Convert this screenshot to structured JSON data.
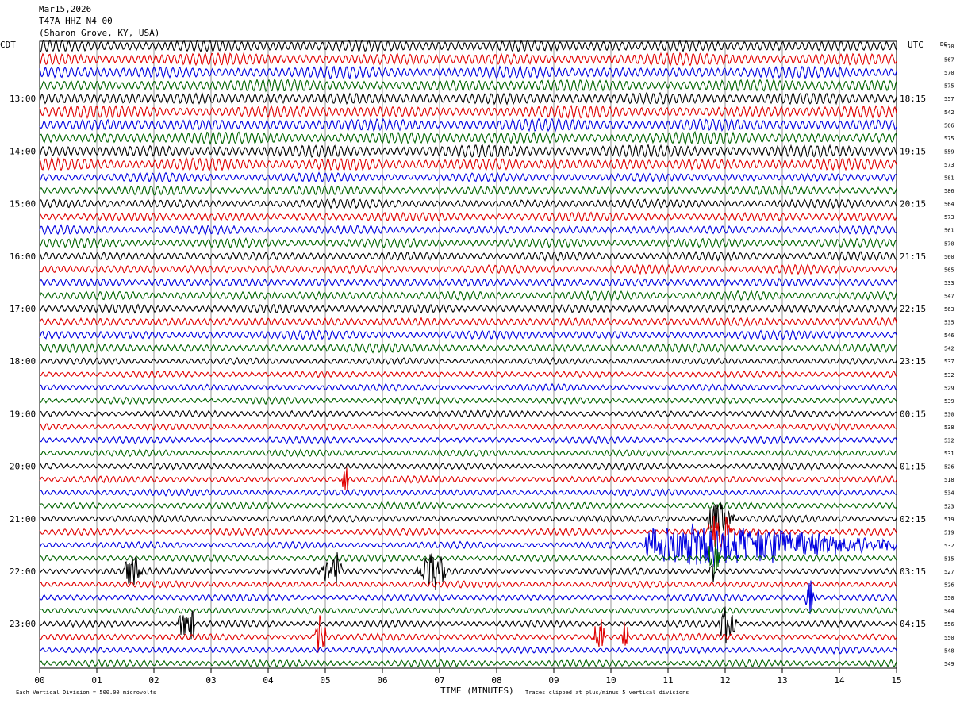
{
  "header": {
    "date": "Mar15,2026",
    "channel": "T47A HHZ N4 00",
    "location": "(Sharon Grove, KY, USA)"
  },
  "labels": {
    "left_tz": "CDT",
    "right_tz": "UTC",
    "dc_header": "DC",
    "xlabel": "TIME (MINUTES)",
    "scale_note": "Each Vertical Division =  500.00 microvolts",
    "clip_note": "Traces clipped at plus/minus 5 vertical divisions"
  },
  "chart_data": {
    "type": "line",
    "description": "helicorder: 48 traces, 15 minutes each, colors cycle black/red/blue/green",
    "x_ticks": [
      "00",
      "01",
      "02",
      "03",
      "04",
      "05",
      "06",
      "07",
      "08",
      "09",
      "10",
      "11",
      "12",
      "13",
      "14",
      "15"
    ],
    "xlim": [
      0,
      15
    ],
    "grid_vertical": true,
    "colors": [
      "#000000",
      "#e00000",
      "#0000e0",
      "#006400"
    ],
    "left_hour_labels": [
      "13:00",
      "14:00",
      "15:00",
      "16:00",
      "17:00",
      "18:00",
      "19:00",
      "20:00",
      "21:00",
      "22:00",
      "23:00"
    ],
    "right_hour_labels": [
      "18:15",
      "19:15",
      "20:15",
      "21:15",
      "22:15",
      "23:15",
      "00:15",
      "01:15",
      "02:15",
      "03:15",
      "04:15"
    ],
    "hour_label_first_row": 4,
    "dc_offsets": [
      570,
      567,
      570,
      575,
      557,
      542,
      566,
      575,
      559,
      573,
      581,
      586,
      564,
      573,
      561,
      570,
      560,
      565,
      533,
      547,
      563,
      535,
      546,
      542,
      537,
      532,
      529,
      539,
      530,
      538,
      532,
      531,
      526,
      518,
      534,
      523,
      519,
      519,
      532,
      515,
      527,
      526,
      550,
      544,
      556,
      550,
      548,
      549
    ],
    "trace_amplitude_class": [
      3,
      3,
      3,
      3,
      3,
      3,
      3,
      3,
      3,
      3,
      2,
      2,
      2,
      2,
      2,
      2,
      2,
      2,
      2,
      2,
      2,
      2,
      2,
      2,
      1,
      1,
      1,
      1,
      1,
      1,
      1,
      1,
      1,
      1,
      1,
      1,
      1,
      1,
      1,
      1,
      1,
      1,
      1,
      1,
      1,
      1,
      1,
      1
    ],
    "events": [
      {
        "row": 38,
        "minute_start": 10.6,
        "minute_end": 15.0,
        "peak_minute": 11.8
      },
      {
        "row": 36,
        "minute_start": 11.7,
        "minute_end": 12.2,
        "peak_minute": 11.8
      },
      {
        "row": 37,
        "minute_start": 11.7,
        "minute_end": 12.1,
        "peak_minute": 11.9
      },
      {
        "row": 39,
        "minute_start": 11.7,
        "minute_end": 11.9,
        "peak_minute": 11.8
      },
      {
        "row": 40,
        "minute_start": 11.7,
        "minute_end": 11.8,
        "peak_minute": 11.8
      },
      {
        "row": 45,
        "minute_start": 4.8,
        "minute_end": 5.0,
        "peak_minute": 4.9
      },
      {
        "row": 45,
        "minute_start": 9.7,
        "minute_end": 9.9,
        "peak_minute": 9.8
      },
      {
        "row": 45,
        "minute_start": 10.2,
        "minute_end": 10.3,
        "peak_minute": 10.25
      },
      {
        "row": 40,
        "minute_start": 1.5,
        "minute_end": 1.8,
        "peak_minute": 1.6
      },
      {
        "row": 40,
        "minute_start": 6.6,
        "minute_end": 7.1,
        "peak_minute": 6.9
      },
      {
        "row": 40,
        "minute_start": 4.9,
        "minute_end": 5.3,
        "peak_minute": 5.2
      },
      {
        "row": 44,
        "minute_start": 2.4,
        "minute_end": 2.7,
        "peak_minute": 2.6
      },
      {
        "row": 44,
        "minute_start": 11.9,
        "minute_end": 12.2,
        "peak_minute": 12.0
      },
      {
        "row": 42,
        "minute_start": 13.4,
        "minute_end": 13.6,
        "peak_minute": 13.5
      },
      {
        "row": 33,
        "minute_start": 5.3,
        "minute_end": 5.4,
        "peak_minute": 5.35
      }
    ]
  }
}
